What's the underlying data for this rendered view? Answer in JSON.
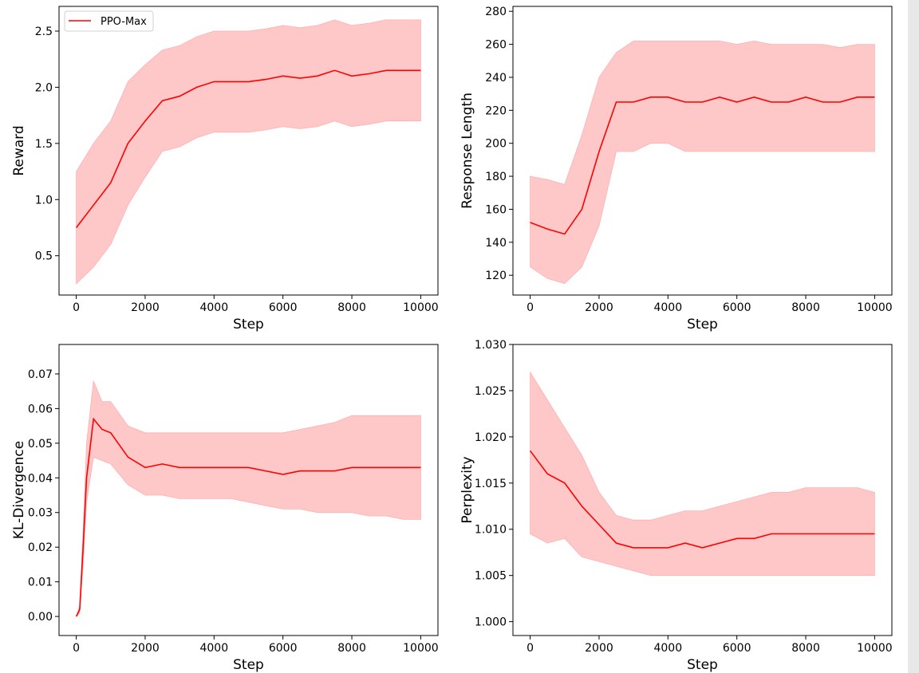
{
  "chart_data": [
    {
      "type": "line",
      "title": "",
      "xlabel": "Step",
      "ylabel": "Reward",
      "xlim": [
        -500,
        10500
      ],
      "ylim": [
        0.15,
        2.72
      ],
      "xticks": [
        0,
        2000,
        4000,
        6000,
        8000,
        10000
      ],
      "yticks": [
        0.5,
        1.0,
        1.5,
        2.0,
        2.5
      ],
      "ytick_decimals": 1,
      "legend": {
        "placement": "top-left",
        "entries": [
          "PPO-Max"
        ]
      },
      "grid": false,
      "series": [
        {
          "name": "PPO-Max",
          "color": "#ff0000",
          "band_color": "#ffc8c8",
          "x": [
            0,
            500,
            1000,
            1500,
            2000,
            2500,
            3000,
            3500,
            4000,
            4500,
            5000,
            5500,
            6000,
            6500,
            7000,
            7500,
            8000,
            8500,
            9000,
            9500,
            10000
          ],
          "mean": [
            0.75,
            0.95,
            1.15,
            1.5,
            1.7,
            1.88,
            1.92,
            2.0,
            2.05,
            2.05,
            2.05,
            2.07,
            2.1,
            2.08,
            2.1,
            2.15,
            2.1,
            2.12,
            2.15,
            2.15,
            2.15
          ],
          "lower": [
            0.25,
            0.4,
            0.6,
            0.95,
            1.2,
            1.43,
            1.47,
            1.55,
            1.6,
            1.6,
            1.6,
            1.62,
            1.65,
            1.63,
            1.65,
            1.7,
            1.65,
            1.67,
            1.7,
            1.7,
            1.7
          ],
          "upper": [
            1.25,
            1.5,
            1.7,
            2.05,
            2.2,
            2.33,
            2.37,
            2.45,
            2.5,
            2.5,
            2.5,
            2.52,
            2.55,
            2.53,
            2.55,
            2.6,
            2.55,
            2.57,
            2.6,
            2.6,
            2.6
          ]
        }
      ]
    },
    {
      "type": "line",
      "title": "",
      "xlabel": "Step",
      "ylabel": "Response Length",
      "xlim": [
        -500,
        10500
      ],
      "ylim": [
        108,
        283
      ],
      "xticks": [
        0,
        2000,
        4000,
        6000,
        8000,
        10000
      ],
      "yticks": [
        120,
        140,
        160,
        180,
        200,
        220,
        240,
        260,
        280
      ],
      "ytick_decimals": 0,
      "grid": false,
      "series": [
        {
          "name": "PPO-Max",
          "color": "#ff0000",
          "band_color": "#ffc8c8",
          "x": [
            0,
            500,
            1000,
            1500,
            2000,
            2500,
            3000,
            3500,
            4000,
            4500,
            5000,
            5500,
            6000,
            6500,
            7000,
            7500,
            8000,
            8500,
            9000,
            9500,
            10000
          ],
          "mean": [
            152,
            148,
            145,
            160,
            195,
            225,
            225,
            228,
            228,
            225,
            225,
            228,
            225,
            228,
            225,
            225,
            228,
            225,
            225,
            228,
            228
          ],
          "lower": [
            125,
            118,
            115,
            125,
            150,
            195,
            195,
            200,
            200,
            195,
            195,
            195,
            195,
            195,
            195,
            195,
            195,
            195,
            195,
            195,
            195
          ],
          "upper": [
            180,
            178,
            175,
            205,
            240,
            255,
            262,
            262,
            262,
            262,
            262,
            262,
            260,
            262,
            260,
            260,
            260,
            260,
            258,
            260,
            260
          ]
        }
      ]
    },
    {
      "type": "line",
      "title": "",
      "xlabel": "Step",
      "ylabel": "KL-Divergence",
      "xlim": [
        -500,
        10500
      ],
      "ylim": [
        -0.0055,
        0.0785
      ],
      "xticks": [
        0,
        2000,
        4000,
        6000,
        8000,
        10000
      ],
      "yticks": [
        0.0,
        0.01,
        0.02,
        0.03,
        0.04,
        0.05,
        0.06,
        0.07
      ],
      "ytick_decimals": 2,
      "grid": false,
      "series": [
        {
          "name": "PPO-Max",
          "color": "#ff0000",
          "band_color": "#ffc8c8",
          "x": [
            0,
            100,
            200,
            300,
            500,
            750,
            1000,
            1500,
            2000,
            2500,
            3000,
            3500,
            4000,
            4500,
            5000,
            5500,
            6000,
            6500,
            7000,
            7500,
            8000,
            8500,
            9000,
            9500,
            10000
          ],
          "mean": [
            0,
            0.002,
            0.02,
            0.04,
            0.057,
            0.054,
            0.053,
            0.046,
            0.043,
            0.044,
            0.043,
            0.043,
            0.043,
            0.043,
            0.043,
            0.042,
            0.041,
            0.042,
            0.042,
            0.042,
            0.043,
            0.043,
            0.043,
            0.043,
            0.043
          ],
          "lower": [
            0,
            0.001,
            0.015,
            0.033,
            0.046,
            0.045,
            0.044,
            0.038,
            0.035,
            0.035,
            0.034,
            0.034,
            0.034,
            0.034,
            0.033,
            0.032,
            0.031,
            0.031,
            0.03,
            0.03,
            0.03,
            0.029,
            0.029,
            0.028,
            0.028
          ],
          "upper": [
            0,
            0.003,
            0.025,
            0.05,
            0.068,
            0.062,
            0.062,
            0.055,
            0.053,
            0.053,
            0.053,
            0.053,
            0.053,
            0.053,
            0.053,
            0.053,
            0.053,
            0.054,
            0.055,
            0.056,
            0.058,
            0.058,
            0.058,
            0.058,
            0.058
          ]
        }
      ]
    },
    {
      "type": "line",
      "title": "",
      "xlabel": "Step",
      "ylabel": "Perplexity",
      "xlim": [
        -500,
        10500
      ],
      "ylim": [
        0.9985,
        1.03
      ],
      "xticks": [
        0,
        2000,
        4000,
        6000,
        8000,
        10000
      ],
      "yticks": [
        1.0,
        1.005,
        1.01,
        1.015,
        1.02,
        1.025,
        1.03
      ],
      "ytick_decimals": 3,
      "grid": false,
      "series": [
        {
          "name": "PPO-Max",
          "color": "#ff0000",
          "band_color": "#ffc8c8",
          "x": [
            0,
            500,
            1000,
            1500,
            2000,
            2500,
            3000,
            3500,
            4000,
            4500,
            5000,
            5500,
            6000,
            6500,
            7000,
            7500,
            8000,
            8500,
            9000,
            9500,
            10000
          ],
          "mean": [
            1.0185,
            1.016,
            1.015,
            1.0125,
            1.0105,
            1.0085,
            1.008,
            1.008,
            1.008,
            1.0085,
            1.008,
            1.0085,
            1.009,
            1.009,
            1.0095,
            1.0095,
            1.0095,
            1.0095,
            1.0095,
            1.0095,
            1.0095
          ],
          "lower": [
            1.0095,
            1.0085,
            1.009,
            1.007,
            1.0065,
            1.006,
            1.0055,
            1.005,
            1.005,
            1.005,
            1.005,
            1.005,
            1.005,
            1.005,
            1.005,
            1.005,
            1.005,
            1.005,
            1.005,
            1.005,
            1.005
          ],
          "upper": [
            1.027,
            1.024,
            1.021,
            1.018,
            1.014,
            1.0115,
            1.011,
            1.011,
            1.0115,
            1.012,
            1.012,
            1.0125,
            1.013,
            1.0135,
            1.014,
            1.014,
            1.0145,
            1.0145,
            1.0145,
            1.0145,
            1.014
          ]
        }
      ]
    }
  ]
}
